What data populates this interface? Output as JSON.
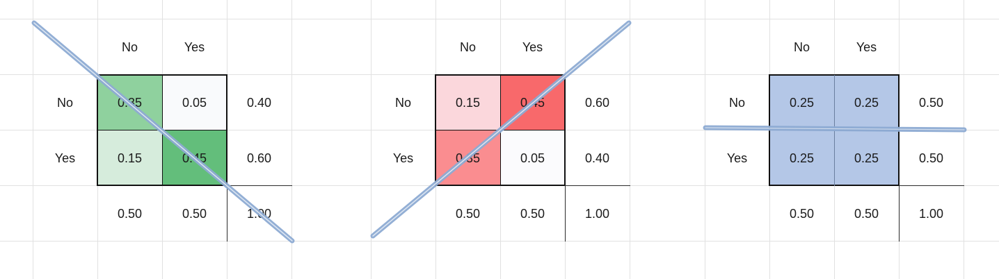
{
  "tables": [
    {
      "col_headers": [
        "No",
        "Yes"
      ],
      "row_headers": [
        "No",
        "Yes"
      ],
      "cells": [
        [
          "0.35",
          "0.05"
        ],
        [
          "0.15",
          "0.45"
        ]
      ],
      "row_totals": [
        "0.40",
        "0.60"
      ],
      "col_totals": [
        "0.50",
        "0.50"
      ],
      "grand_total": "1.00",
      "cell_colors": [
        [
          "#8fd19e",
          "#f9fafc"
        ],
        [
          "#d6ecdc",
          "#63be7b"
        ]
      ],
      "strike_line": "diagonal-down"
    },
    {
      "col_headers": [
        "No",
        "Yes"
      ],
      "row_headers": [
        "No",
        "Yes"
      ],
      "cells": [
        [
          "0.15",
          "0.45"
        ],
        [
          "0.35",
          "0.05"
        ]
      ],
      "row_totals": [
        "0.60",
        "0.40"
      ],
      "col_totals": [
        "0.50",
        "0.50"
      ],
      "grand_total": "1.00",
      "cell_colors": [
        [
          "#fbd7dc",
          "#f8696b"
        ],
        [
          "#fa8d90",
          "#fbfbfd"
        ]
      ],
      "strike_line": "diagonal-up"
    },
    {
      "col_headers": [
        "No",
        "Yes"
      ],
      "row_headers": [
        "No",
        "Yes"
      ],
      "cells": [
        [
          "0.25",
          "0.25"
        ],
        [
          "0.25",
          "0.25"
        ]
      ],
      "row_totals": [
        "0.50",
        "0.50"
      ],
      "col_totals": [
        "0.50",
        "0.50"
      ],
      "grand_total": "1.00",
      "cell_colors": [
        [
          "#b4c7e7",
          "#b4c7e7"
        ],
        [
          "#b4c7e7",
          "#b4c7e7"
        ]
      ],
      "strike_line": "horizontal"
    }
  ],
  "colors": {
    "gridline": "#e1e1e1",
    "table_border": "#111111",
    "strike_line": "#8eabd3",
    "text": "#1a1a1a"
  }
}
